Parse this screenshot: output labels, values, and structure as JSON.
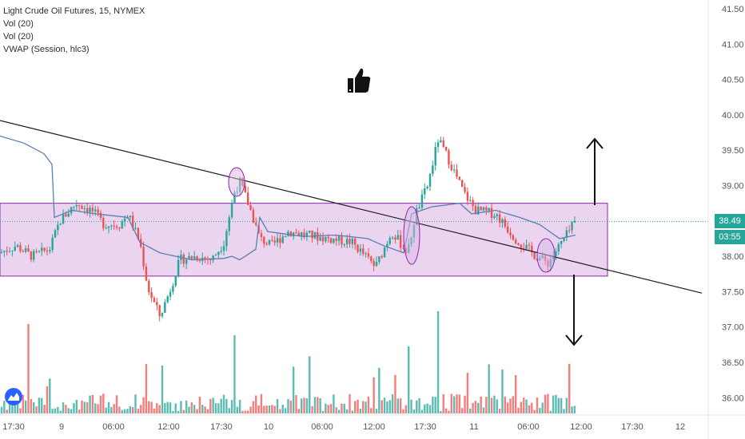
{
  "chart_data": {
    "type": "candlestick",
    "title": "Light Crude Oil Futures, 15, NYMEX",
    "indicators": [
      "Vol (20)",
      "Vol (20)",
      "VWAP (Session, hlc3)"
    ],
    "y_axis": {
      "ticks": [
        "41.50",
        "41.00",
        "40.50",
        "40.00",
        "39.50",
        "39.00",
        "38.50",
        "38.00",
        "37.50",
        "37.00",
        "36.50",
        "36.00"
      ],
      "range": [
        35.85,
        41.6
      ]
    },
    "x_axis": {
      "ticks": [
        "17:30",
        "9",
        "06:00",
        "12:00",
        "17:30",
        "10",
        "06:00",
        "12:00",
        "17:30",
        "11",
        "06:00",
        "12:00",
        "17:30",
        "12"
      ]
    },
    "last_price": "38.49",
    "countdown": "03:55",
    "box_range": [
      37.72,
      38.75
    ],
    "trendline": {
      "from": 39.92,
      "to": 37.48
    },
    "annotations": [
      "up arrow",
      "down arrow",
      "thumbs-up icon",
      "circled touches on trendline"
    ],
    "grid": false,
    "colors": {
      "up": "#26a69a",
      "down": "#ef5350",
      "vwap": "#5b7fb0",
      "box_fill": "#dcb8e6",
      "box_border": "#8e24aa",
      "trendline": "#1b1b1b",
      "price_tag": "#26a69a"
    }
  }
}
